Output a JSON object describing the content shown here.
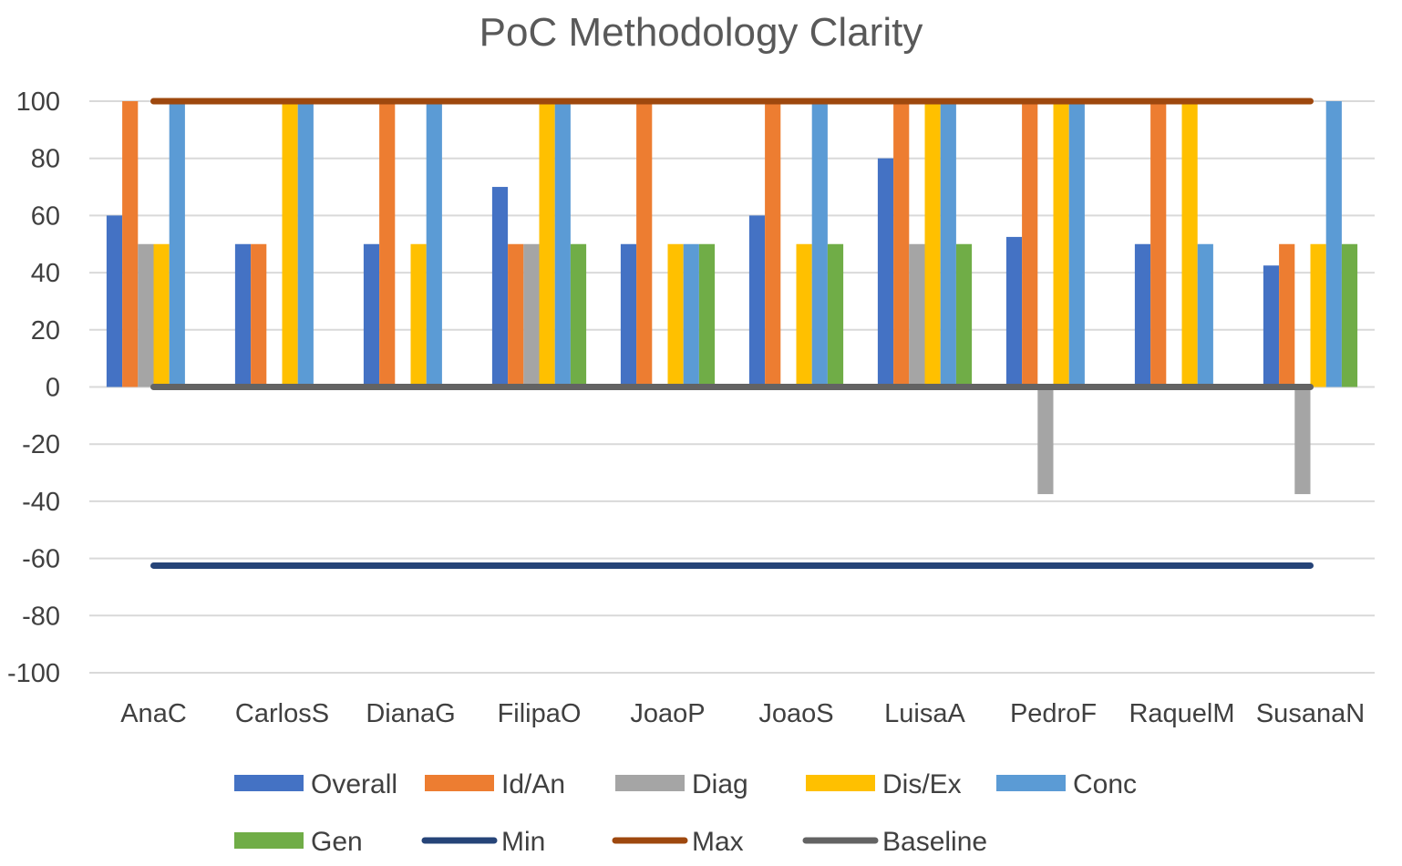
{
  "chart_data": {
    "type": "bar",
    "title": "PoC Methodology Clarity",
    "xlabel": "",
    "ylabel": "",
    "ylim": [
      -100,
      100
    ],
    "ytick_step": 20,
    "grid": true,
    "legend_position": "bottom",
    "categories": [
      "AnaC",
      "CarlosS",
      "DianaG",
      "FilipaO",
      "JoaoP",
      "JoaoS",
      "LuisaA",
      "PedroF",
      "RaquelM",
      "SusanaN"
    ],
    "series": [
      {
        "name": "Overall",
        "kind": "bar",
        "color": "#4472C4",
        "values": [
          60,
          50,
          50,
          70,
          50,
          60,
          80,
          52.5,
          50,
          42.5
        ]
      },
      {
        "name": "Id/An",
        "kind": "bar",
        "color": "#ED7D31",
        "values": [
          100,
          50,
          100,
          50,
          100,
          100,
          100,
          100,
          100,
          50
        ]
      },
      {
        "name": "Diag",
        "kind": "bar",
        "color": "#A5A5A5",
        "values": [
          50,
          0,
          0,
          50,
          0,
          0,
          50,
          -37.5,
          0,
          -37.5
        ]
      },
      {
        "name": "Dis/Ex",
        "kind": "bar",
        "color": "#FFC000",
        "values": [
          50,
          100,
          50,
          100,
          50,
          50,
          100,
          100,
          100,
          50
        ]
      },
      {
        "name": "Conc",
        "kind": "bar",
        "color": "#5B9BD5",
        "values": [
          100,
          100,
          100,
          100,
          50,
          100,
          100,
          100,
          50,
          100
        ]
      },
      {
        "name": "Gen",
        "kind": "bar",
        "color": "#70AD47",
        "values": [
          0,
          0,
          0,
          50,
          50,
          50,
          50,
          0,
          0,
          50
        ]
      },
      {
        "name": "Min",
        "kind": "line",
        "color": "#264478",
        "values": [
          -62.5,
          -62.5,
          -62.5,
          -62.5,
          -62.5,
          -62.5,
          -62.5,
          -62.5,
          -62.5,
          -62.5
        ]
      },
      {
        "name": "Max",
        "kind": "line",
        "color": "#9E480E",
        "values": [
          100,
          100,
          100,
          100,
          100,
          100,
          100,
          100,
          100,
          100
        ]
      },
      {
        "name": "Baseline",
        "kind": "line",
        "color": "#636363",
        "values": [
          0,
          0,
          0,
          0,
          0,
          0,
          0,
          0,
          0,
          0
        ]
      }
    ]
  }
}
